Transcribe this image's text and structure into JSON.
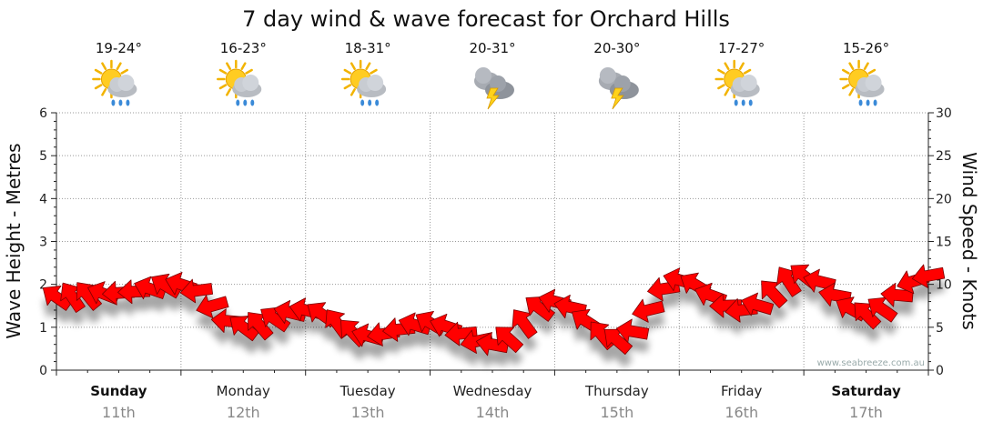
{
  "chart_data": {
    "type": "line",
    "title": "7 day wind & wave forecast for Orchard Hills",
    "ylabel_left": "Wave Height - Metres",
    "ylabel_right": "Wind Speed - Knots",
    "ylim_left": [
      0,
      6
    ],
    "ylim_right": [
      0,
      30
    ],
    "yticks_left": [
      "0",
      "1",
      "2",
      "3",
      "4",
      "5",
      "6"
    ],
    "yticks_right": [
      "0",
      "5",
      "10",
      "15",
      "20",
      "25",
      "30"
    ],
    "grid": true,
    "watermark": "www.seabreeze.com.au",
    "days": [
      {
        "name": "Sunday",
        "date": "11th",
        "bold": true,
        "temp": "19-24°",
        "icon": "sun-cloud-rain-icon"
      },
      {
        "name": "Monday",
        "date": "12th",
        "bold": false,
        "temp": "16-23°",
        "icon": "sun-cloud-rain-icon"
      },
      {
        "name": "Tuesday",
        "date": "13th",
        "bold": false,
        "temp": "18-31°",
        "icon": "sun-cloud-rain-icon"
      },
      {
        "name": "Wednesday",
        "date": "14th",
        "bold": false,
        "temp": "20-31°",
        "icon": "storm-cloud-icon"
      },
      {
        "name": "Thursday",
        "date": "15th",
        "bold": false,
        "temp": "20-30°",
        "icon": "storm-cloud-icon"
      },
      {
        "name": "Friday",
        "date": "16th",
        "bold": false,
        "temp": "17-27°",
        "icon": "sun-cloud-rain-icon"
      },
      {
        "name": "Saturday",
        "date": "17th",
        "bold": true,
        "temp": "15-26°",
        "icon": "sun-cloud-rain-icon"
      }
    ],
    "wind_series": {
      "name": "Wind Speed (knots)",
      "x_hours": [
        0,
        12,
        24,
        36,
        48,
        60,
        72,
        84,
        96,
        108,
        120,
        132,
        144,
        156,
        168
      ],
      "values": [
        8.5,
        9.0,
        10.0,
        5.0,
        7.0,
        4.0,
        5.5,
        3.0,
        8.0,
        3.5,
        10.5,
        7.0,
        11.0,
        6.5,
        11.0
      ],
      "direction": "from east-southeast, drawn as red arrows"
    }
  }
}
